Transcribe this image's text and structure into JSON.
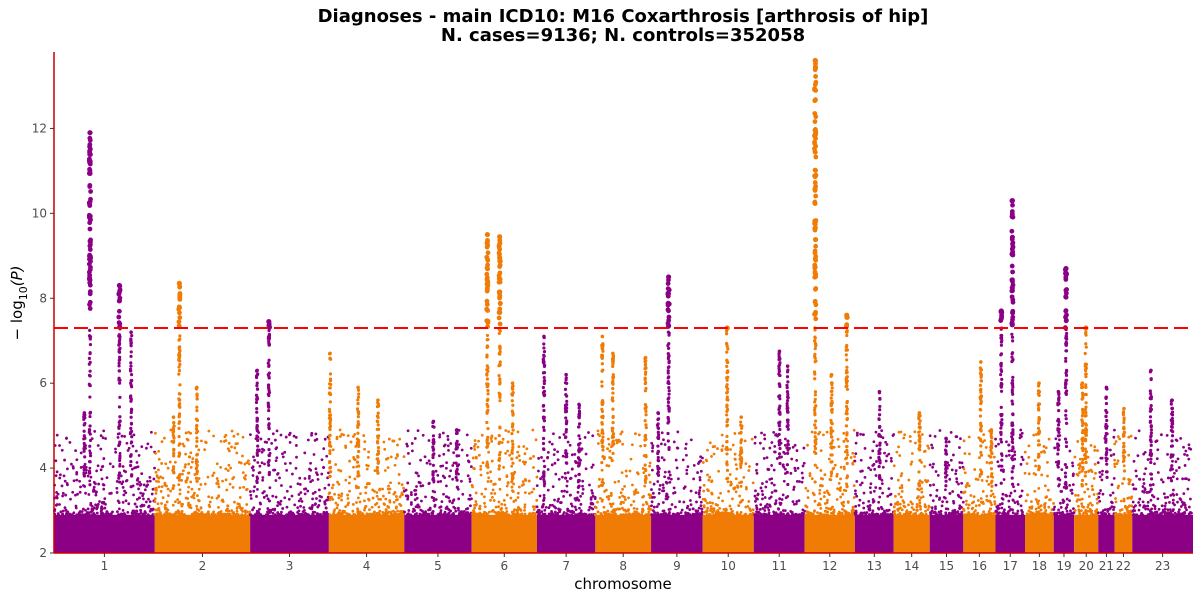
{
  "chart_data": {
    "type": "scatter",
    "subtype": "manhattan",
    "title": "Diagnoses - main ICD10: M16 Coxarthrosis [arthrosis of hip]",
    "subtitle": "N. cases=9136; N. controls=352058",
    "xlabel": "chromosome",
    "ylabel_main": "− log",
    "ylabel_sub": "10",
    "ylabel_tail": "(P)",
    "ylim": [
      2,
      13.8
    ],
    "yticks": [
      2,
      4,
      6,
      8,
      10,
      12
    ],
    "ytick_labels": [
      "2",
      "4",
      "6",
      "8",
      "10",
      "12"
    ],
    "significance_threshold": 7.3,
    "grid": false,
    "colors": {
      "odd": "#8b0085",
      "even": "#f07b05",
      "threshold": "#ff0000",
      "axis": "#cc0000"
    },
    "chromosomes": [
      {
        "label": "1",
        "start": 0.0,
        "end": 8.63,
        "peaks": [
          [
            3.08,
            11.9
          ],
          [
            5.6,
            8.3
          ],
          [
            6.6,
            7.2
          ],
          [
            2.6,
            5.3
          ]
        ]
      },
      {
        "label": "2",
        "start": 8.63,
        "end": 16.79,
        "peaks": [
          [
            2.1,
            8.35
          ],
          [
            3.6,
            5.9
          ],
          [
            1.6,
            5.2
          ]
        ]
      },
      {
        "label": "3",
        "start": 16.79,
        "end": 23.53,
        "peaks": [
          [
            1.6,
            7.45
          ],
          [
            0.6,
            6.3
          ]
        ]
      },
      {
        "label": "4",
        "start": 23.53,
        "end": 29.98,
        "peaks": [
          [
            0.1,
            6.7
          ],
          [
            2.5,
            5.9
          ],
          [
            4.2,
            5.6
          ]
        ]
      },
      {
        "label": "5",
        "start": 29.98,
        "end": 35.75,
        "peaks": [
          [
            2.5,
            5.1
          ],
          [
            4.5,
            4.9
          ]
        ]
      },
      {
        "label": "6",
        "start": 35.75,
        "end": 41.34,
        "peaks": [
          [
            1.35,
            9.5
          ],
          [
            2.4,
            9.45
          ],
          [
            3.5,
            6.0
          ]
        ]
      },
      {
        "label": "7",
        "start": 41.34,
        "end": 46.34,
        "peaks": [
          [
            0.6,
            7.1
          ],
          [
            2.5,
            6.2
          ],
          [
            3.6,
            5.5
          ]
        ]
      },
      {
        "label": "8",
        "start": 46.34,
        "end": 51.11,
        "peaks": [
          [
            0.6,
            7.1
          ],
          [
            1.5,
            6.7
          ],
          [
            4.3,
            6.6
          ]
        ]
      },
      {
        "label": "9",
        "start": 51.11,
        "end": 55.53,
        "peaks": [
          [
            1.5,
            8.5
          ],
          [
            0.6,
            5.3
          ]
        ]
      },
      {
        "label": "10",
        "start": 55.53,
        "end": 59.9,
        "peaks": [
          [
            2.1,
            7.3
          ],
          [
            3.3,
            5.2
          ]
        ]
      },
      {
        "label": "11",
        "start": 59.9,
        "end": 64.26,
        "peaks": [
          [
            2.2,
            6.75
          ],
          [
            2.9,
            6.4
          ]
        ]
      },
      {
        "label": "12",
        "start": 64.26,
        "end": 68.56,
        "peaks": [
          [
            0.9,
            13.6
          ],
          [
            3.6,
            7.6
          ],
          [
            2.3,
            6.2
          ]
        ]
      },
      {
        "label": "13",
        "start": 68.56,
        "end": 71.88,
        "peaks": [
          [
            2.1,
            5.8
          ]
        ]
      },
      {
        "label": "14",
        "start": 71.88,
        "end": 74.96,
        "peaks": [
          [
            2.2,
            5.3
          ]
        ]
      },
      {
        "label": "15",
        "start": 74.96,
        "end": 77.84,
        "peaks": [
          [
            1.4,
            4.7
          ]
        ]
      },
      {
        "label": "16",
        "start": 77.84,
        "end": 80.59,
        "peaks": [
          [
            1.5,
            6.5
          ],
          [
            2.4,
            4.9
          ]
        ]
      },
      {
        "label": "17",
        "start": 80.59,
        "end": 83.12,
        "peaks": [
          [
            1.45,
            10.3
          ],
          [
            0.5,
            7.7
          ]
        ]
      },
      {
        "label": "18",
        "start": 83.12,
        "end": 85.58,
        "peaks": [
          [
            1.2,
            6.0
          ]
        ]
      },
      {
        "label": "19",
        "start": 85.58,
        "end": 87.33,
        "peaks": [
          [
            1.05,
            8.7
          ],
          [
            0.4,
            5.8
          ]
        ]
      },
      {
        "label": "20",
        "start": 87.33,
        "end": 89.39,
        "peaks": [
          [
            1.0,
            7.3
          ],
          [
            0.7,
            6.0
          ]
        ]
      },
      {
        "label": "21",
        "start": 89.39,
        "end": 90.79,
        "peaks": [
          [
            0.7,
            5.9
          ]
        ]
      },
      {
        "label": "22",
        "start": 90.79,
        "end": 92.3,
        "peaks": [
          [
            0.8,
            5.4
          ]
        ]
      },
      {
        "label": "23",
        "start": 92.3,
        "end": 97.5,
        "peaks": [
          [
            1.6,
            6.3
          ],
          [
            3.4,
            5.6
          ]
        ]
      }
    ]
  }
}
